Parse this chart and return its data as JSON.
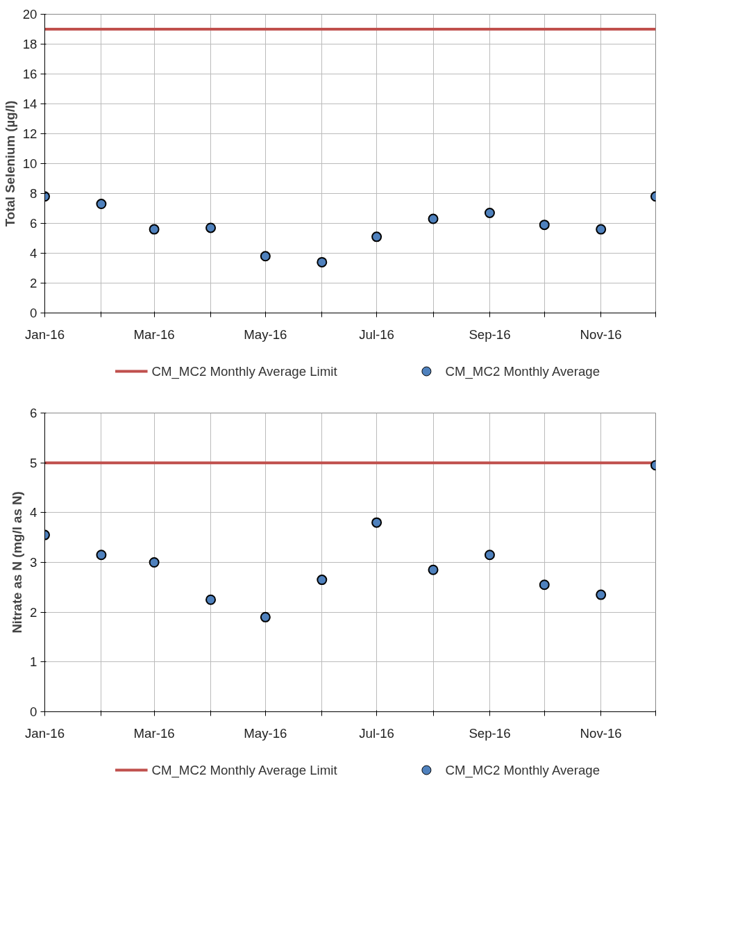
{
  "chart_data": [
    {
      "type": "scatter",
      "ylabel": "Total Selenium (µg/l)",
      "x": [
        "2016-01",
        "2016-02",
        "2016-03",
        "2016-04",
        "2016-05",
        "2016-06",
        "2016-07",
        "2016-08",
        "2016-09",
        "2016-10",
        "2016-11",
        "2016-12"
      ],
      "series": [
        {
          "name": "CM_MC2 Monthly Average Limit",
          "type": "line",
          "color": "#c0504d",
          "marker": "none",
          "values": [
            19,
            19,
            19,
            19,
            19,
            19,
            19,
            19,
            19,
            19,
            19,
            19
          ]
        },
        {
          "name": "CM_MC2 Monthly Average",
          "color": "#4f81bd",
          "marker": "circle",
          "values": [
            7.8,
            7.3,
            5.6,
            5.7,
            3.8,
            3.4,
            5.1,
            6.3,
            6.7,
            5.9,
            5.6,
            7.8
          ]
        }
      ],
      "xlim": [
        "2016-01",
        "2016-12"
      ],
      "xticks": [
        {
          "value": "2016-01",
          "label": "Jan-16"
        },
        {
          "value": "2016-02",
          "label": null
        },
        {
          "value": "2016-03",
          "label": "Mar-16"
        },
        {
          "value": "2016-04",
          "label": null
        },
        {
          "value": "2016-05",
          "label": "May-16"
        },
        {
          "value": "2016-06",
          "label": null
        },
        {
          "value": "2016-07",
          "label": "Jul-16"
        },
        {
          "value": "2016-08",
          "label": null
        },
        {
          "value": "2016-09",
          "label": "Sep-16"
        },
        {
          "value": "2016-10",
          "label": null
        },
        {
          "value": "2016-11",
          "label": "Nov-16"
        },
        {
          "value": "2016-12",
          "label": null
        }
      ],
      "ylim": [
        0,
        20
      ],
      "yticks": [
        0,
        2,
        4,
        6,
        8,
        10,
        12,
        14,
        16,
        18,
        20
      ],
      "grid": true,
      "legend": "bottom"
    },
    {
      "type": "scatter",
      "ylabel": "Nitrate as N (mg/l as N)",
      "x": [
        "2016-01",
        "2016-02",
        "2016-03",
        "2016-04",
        "2016-05",
        "2016-06",
        "2016-07",
        "2016-08",
        "2016-09",
        "2016-10",
        "2016-11",
        "2016-12"
      ],
      "series": [
        {
          "name": "CM_MC2 Monthly Average Limit",
          "type": "line",
          "color": "#c0504d",
          "marker": "none",
          "values": [
            5,
            5,
            5,
            5,
            5,
            5,
            5,
            5,
            5,
            5,
            5,
            5
          ]
        },
        {
          "name": "CM_MC2 Monthly Average",
          "color": "#4f81bd",
          "marker": "circle",
          "values": [
            3.55,
            3.15,
            3.0,
            2.25,
            1.9,
            2.65,
            3.8,
            2.85,
            3.15,
            2.55,
            2.35,
            4.95
          ]
        }
      ],
      "xlim": [
        "2016-01",
        "2016-12"
      ],
      "xticks": [
        {
          "value": "2016-01",
          "label": "Jan-16"
        },
        {
          "value": "2016-02",
          "label": null
        },
        {
          "value": "2016-03",
          "label": "Mar-16"
        },
        {
          "value": "2016-04",
          "label": null
        },
        {
          "value": "2016-05",
          "label": "May-16"
        },
        {
          "value": "2016-06",
          "label": null
        },
        {
          "value": "2016-07",
          "label": "Jul-16"
        },
        {
          "value": "2016-08",
          "label": null
        },
        {
          "value": "2016-09",
          "label": "Sep-16"
        },
        {
          "value": "2016-10",
          "label": null
        },
        {
          "value": "2016-11",
          "label": "Nov-16"
        },
        {
          "value": "2016-12",
          "label": null
        }
      ],
      "ylim": [
        0,
        6
      ],
      "yticks": [
        0,
        1,
        2,
        3,
        4,
        5,
        6
      ],
      "grid": true,
      "legend": "bottom"
    }
  ]
}
